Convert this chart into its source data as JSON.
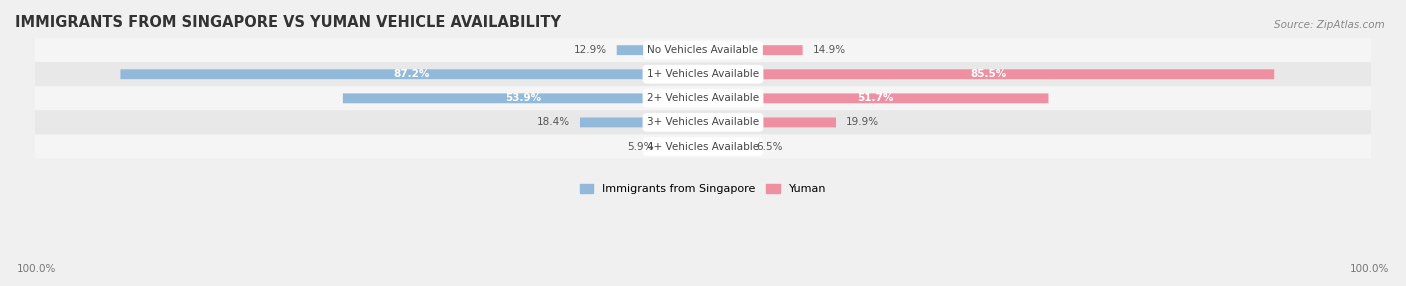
{
  "title": "IMMIGRANTS FROM SINGAPORE VS YUMAN VEHICLE AVAILABILITY",
  "source": "Source: ZipAtlas.com",
  "categories": [
    "No Vehicles Available",
    "1+ Vehicles Available",
    "2+ Vehicles Available",
    "3+ Vehicles Available",
    "4+ Vehicles Available"
  ],
  "singapore_values": [
    12.9,
    87.2,
    53.9,
    18.4,
    5.9
  ],
  "yuman_values": [
    14.9,
    85.5,
    51.7,
    19.9,
    6.5
  ],
  "singapore_color": "#92b8da",
  "yuman_color": "#ee8fa2",
  "singapore_label": "Immigrants from Singapore",
  "yuman_label": "Yuman",
  "axis_label_left": "100.0%",
  "axis_label_right": "100.0%",
  "title_fontsize": 10.5,
  "source_fontsize": 7.5,
  "bar_height": 0.38,
  "max_val": 100,
  "background_color": "#f0f0f0",
  "row_colors": [
    "#f5f5f5",
    "#e8e8e8",
    "#f5f5f5",
    "#e8e8e8",
    "#f5f5f5"
  ],
  "label_fontsize": 7.5,
  "cat_fontsize": 7.5,
  "legend_fontsize": 8
}
